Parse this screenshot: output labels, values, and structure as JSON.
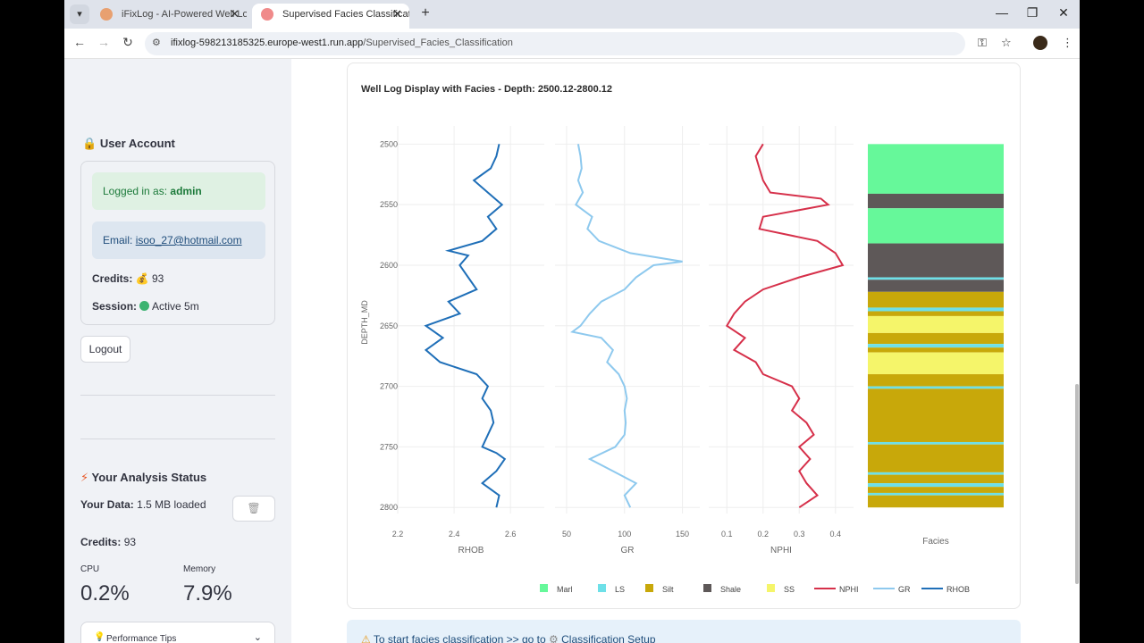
{
  "browser": {
    "tabs": [
      {
        "title": "iFixLog - AI-Powered Well Log A",
        "active": false
      },
      {
        "title": "Supervised Facies Classification",
        "active": true
      }
    ],
    "url_host": "ifixlog-598213185325.europe-west1.run.app",
    "url_path": "/Supervised_Facies_Classification"
  },
  "sidebar": {
    "account_title": "User Account",
    "logged_in_prefix": "Logged in as:",
    "username": "admin",
    "email_prefix": "Email:",
    "email": "isoo_27@hotmail.com",
    "credits_label": "Credits:",
    "credits_value": "93",
    "session_label": "Session:",
    "session_value": "Active 5m",
    "logout_label": "Logout",
    "analysis_title": "Your Analysis Status",
    "your_data_label": "Your Data:",
    "your_data_value": "1.5 MB loaded",
    "credits_line_label": "Credits:",
    "credits_line_value": "93",
    "cpu_label": "CPU",
    "cpu_value": "0.2%",
    "memory_label": "Memory",
    "memory_value": "7.9%",
    "tips_label": "Performance Tips"
  },
  "main": {
    "info_prefix": "To start facies classification >> go to",
    "info_link": "Classification Setup"
  },
  "chart_data": {
    "type": "line",
    "title": "Well Log Display with Facies - Depth: 2500.12-2800.12",
    "y_axis_label": "DEPTH_MD",
    "y_range": [
      2485,
      2805
    ],
    "y_ticks": [
      "2500",
      "2550",
      "2600",
      "2650",
      "2700",
      "2750",
      "2800"
    ],
    "tracks": [
      {
        "name": "RHOB",
        "xlabel": "RHOB",
        "ticks": [
          "2.2",
          "2.4",
          "2.6"
        ],
        "range": [
          2.2,
          2.72
        ],
        "color": "#1f6fb8",
        "depth": [
          2500,
          2510,
          2520,
          2530,
          2540,
          2550,
          2560,
          2570,
          2580,
          2588,
          2592,
          2600,
          2610,
          2620,
          2630,
          2640,
          2650,
          2660,
          2670,
          2680,
          2690,
          2700,
          2710,
          2720,
          2730,
          2740,
          2750,
          2755,
          2760,
          2770,
          2780,
          2790,
          2800
        ],
        "values": [
          2.56,
          2.55,
          2.53,
          2.47,
          2.52,
          2.57,
          2.52,
          2.55,
          2.5,
          2.38,
          2.45,
          2.42,
          2.45,
          2.48,
          2.38,
          2.42,
          2.3,
          2.36,
          2.3,
          2.35,
          2.48,
          2.52,
          2.5,
          2.53,
          2.54,
          2.52,
          2.5,
          2.55,
          2.58,
          2.55,
          2.5,
          2.56,
          2.55
        ]
      },
      {
        "name": "GR",
        "xlabel": "GR",
        "ticks": [
          "50",
          "100",
          "150"
        ],
        "range": [
          40,
          165
        ],
        "color": "#8ec9ee",
        "depth": [
          2500,
          2510,
          2520,
          2530,
          2540,
          2550,
          2560,
          2570,
          2580,
          2590,
          2597,
          2600,
          2610,
          2620,
          2630,
          2640,
          2650,
          2655,
          2660,
          2670,
          2680,
          2690,
          2700,
          2710,
          2720,
          2730,
          2740,
          2750,
          2760,
          2770,
          2780,
          2790,
          2800
        ],
        "values": [
          60,
          62,
          63,
          60,
          64,
          58,
          72,
          68,
          78,
          105,
          150,
          125,
          110,
          100,
          80,
          70,
          62,
          55,
          80,
          90,
          85,
          95,
          100,
          102,
          100,
          101,
          100,
          92,
          70,
          90,
          110,
          100,
          105
        ]
      },
      {
        "name": "NPHI",
        "xlabel": "NPHI",
        "ticks": [
          "0.1",
          "0.2",
          "0.3",
          "0.4"
        ],
        "range": [
          0.05,
          0.45
        ],
        "color": "#d6304a",
        "depth": [
          2500,
          2510,
          2520,
          2530,
          2540,
          2545,
          2550,
          2560,
          2570,
          2580,
          2590,
          2600,
          2610,
          2620,
          2630,
          2640,
          2650,
          2660,
          2670,
          2680,
          2690,
          2700,
          2710,
          2720,
          2730,
          2740,
          2750,
          2760,
          2770,
          2780,
          2790,
          2800
        ],
        "values": [
          0.2,
          0.18,
          0.19,
          0.2,
          0.22,
          0.36,
          0.38,
          0.2,
          0.19,
          0.35,
          0.4,
          0.42,
          0.3,
          0.2,
          0.15,
          0.12,
          0.1,
          0.15,
          0.12,
          0.18,
          0.2,
          0.28,
          0.3,
          0.28,
          0.32,
          0.34,
          0.3,
          0.33,
          0.3,
          0.32,
          0.35,
          0.3
        ]
      }
    ],
    "facies_track": {
      "xlabel": "Facies",
      "intervals": [
        {
          "top": 2500,
          "base": 2541,
          "facies": "Marl"
        },
        {
          "top": 2541,
          "base": 2553,
          "facies": "Shale"
        },
        {
          "top": 2553,
          "base": 2582,
          "facies": "Marl"
        },
        {
          "top": 2582,
          "base": 2610,
          "facies": "Shale"
        },
        {
          "top": 2610,
          "base": 2612,
          "facies": "LS"
        },
        {
          "top": 2612,
          "base": 2622,
          "facies": "Shale"
        },
        {
          "top": 2622,
          "base": 2635,
          "facies": "Silt"
        },
        {
          "top": 2635,
          "base": 2638,
          "facies": "LS"
        },
        {
          "top": 2638,
          "base": 2642,
          "facies": "Silt"
        },
        {
          "top": 2642,
          "base": 2656,
          "facies": "SS"
        },
        {
          "top": 2656,
          "base": 2665,
          "facies": "Silt"
        },
        {
          "top": 2665,
          "base": 2668,
          "facies": "LS"
        },
        {
          "top": 2668,
          "base": 2672,
          "facies": "Silt"
        },
        {
          "top": 2672,
          "base": 2690,
          "facies": "SS"
        },
        {
          "top": 2690,
          "base": 2700,
          "facies": "Silt"
        },
        {
          "top": 2700,
          "base": 2702,
          "facies": "LS"
        },
        {
          "top": 2702,
          "base": 2746,
          "facies": "Silt"
        },
        {
          "top": 2746,
          "base": 2748,
          "facies": "LS"
        },
        {
          "top": 2748,
          "base": 2771,
          "facies": "Silt"
        },
        {
          "top": 2771,
          "base": 2773,
          "facies": "LS"
        },
        {
          "top": 2773,
          "base": 2780,
          "facies": "Silt"
        },
        {
          "top": 2780,
          "base": 2783,
          "facies": "LS"
        },
        {
          "top": 2783,
          "base": 2788,
          "facies": "Silt"
        },
        {
          "top": 2788,
          "base": 2790,
          "facies": "LS"
        },
        {
          "top": 2790,
          "base": 2800,
          "facies": "Silt"
        }
      ]
    },
    "facies_colors": {
      "Marl": "#66f89a",
      "LS": "#6ee0e8",
      "Silt": "#c8a80a",
      "Shale": "#5e5858",
      "SS": "#f5f56a"
    },
    "legend": [
      {
        "label": "Marl",
        "kind": "box",
        "color": "#66f89a"
      },
      {
        "label": "LS",
        "kind": "box",
        "color": "#6ee0e8"
      },
      {
        "label": "Silt",
        "kind": "box",
        "color": "#c8a80a"
      },
      {
        "label": "Shale",
        "kind": "box",
        "color": "#5e5858"
      },
      {
        "label": "SS",
        "kind": "box",
        "color": "#f5f56a"
      },
      {
        "label": "NPHI",
        "kind": "line",
        "color": "#d6304a"
      },
      {
        "label": "GR",
        "kind": "line",
        "color": "#8ec9ee"
      },
      {
        "label": "RHOB",
        "kind": "line",
        "color": "#1f6fb8"
      }
    ]
  }
}
